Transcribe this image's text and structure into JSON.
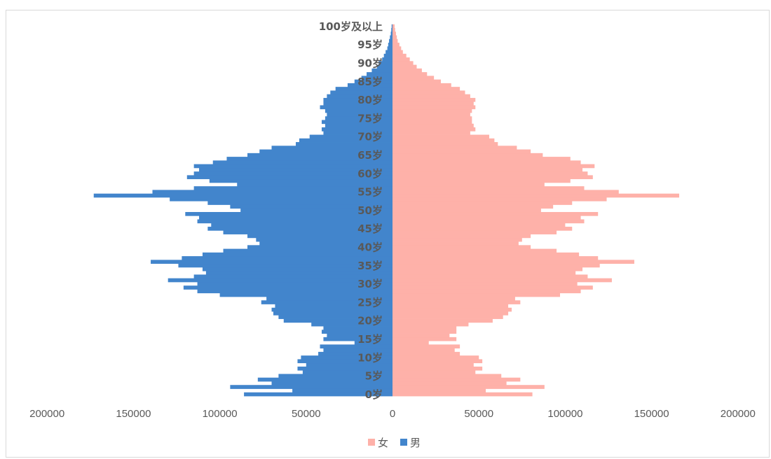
{
  "chart_data": {
    "type": "bar",
    "orientation": "horizontal-population-pyramid",
    "title": "",
    "xlabel": "",
    "ylabel": "",
    "xlim": [
      -200000,
      200000
    ],
    "x_tick_labels": [
      "200000",
      "150000",
      "100000",
      "50000",
      "0",
      "50000",
      "100000",
      "150000",
      "200000"
    ],
    "x_tick_values": [
      -200000,
      -150000,
      -100000,
      -50000,
      0,
      50000,
      100000,
      150000,
      200000
    ],
    "grid": false,
    "legend_position": "bottom",
    "categories": [
      "0岁",
      "1岁",
      "2岁",
      "3岁",
      "4岁",
      "5岁",
      "6岁",
      "7岁",
      "8岁",
      "9岁",
      "10岁",
      "11岁",
      "12岁",
      "13岁",
      "14岁",
      "15岁",
      "16岁",
      "17岁",
      "18岁",
      "19岁",
      "20岁",
      "21岁",
      "22岁",
      "23岁",
      "24岁",
      "25岁",
      "26岁",
      "27岁",
      "28岁",
      "29岁",
      "30岁",
      "31岁",
      "32岁",
      "33岁",
      "34岁",
      "35岁",
      "36岁",
      "37岁",
      "38岁",
      "39岁",
      "40岁",
      "41岁",
      "42岁",
      "43岁",
      "44岁",
      "45岁",
      "46岁",
      "47岁",
      "48岁",
      "49岁",
      "50岁",
      "51岁",
      "52岁",
      "53岁",
      "54岁",
      "55岁",
      "56岁",
      "57岁",
      "58岁",
      "59岁",
      "60岁",
      "61岁",
      "62岁",
      "63岁",
      "64岁",
      "65岁",
      "66岁",
      "67岁",
      "68岁",
      "69岁",
      "70岁",
      "71岁",
      "72岁",
      "73岁",
      "74岁",
      "75岁",
      "76岁",
      "77岁",
      "78岁",
      "79岁",
      "80岁",
      "81岁",
      "82岁",
      "83岁",
      "84岁",
      "85岁",
      "86岁",
      "87岁",
      "88岁",
      "89岁",
      "90岁",
      "91岁",
      "92岁",
      "93岁",
      "94岁",
      "95岁",
      "96岁",
      "97岁",
      "98岁",
      "99岁",
      "100岁及以上"
    ],
    "y_tick_labels": [
      "0岁",
      "5岁",
      "10岁",
      "15岁",
      "20岁",
      "25岁",
      "30岁",
      "35岁",
      "40岁",
      "45岁",
      "50岁",
      "55岁",
      "60岁",
      "65岁",
      "70岁",
      "75岁",
      "80岁",
      "85岁",
      "90岁",
      "95岁",
      "100岁及以上"
    ],
    "series": [
      {
        "name": "男",
        "color": "#4285cc",
        "side": "left",
        "values": [
          86000,
          58000,
          94000,
          70000,
          78000,
          66000,
          52000,
          55000,
          50000,
          55000,
          53000,
          43000,
          40000,
          42000,
          22000,
          40000,
          38000,
          41000,
          40000,
          47000,
          63000,
          66000,
          69000,
          70000,
          68000,
          76000,
          73000,
          100000,
          113000,
          121000,
          113000,
          130000,
          115000,
          108000,
          110000,
          124000,
          140000,
          122000,
          110000,
          98000,
          84000,
          77000,
          79000,
          84000,
          98000,
          107000,
          105000,
          113000,
          112000,
          120000,
          88000,
          94000,
          107000,
          129000,
          173000,
          139000,
          115000,
          90000,
          106000,
          119000,
          115000,
          112000,
          115000,
          104000,
          96000,
          84000,
          77000,
          70000,
          56000,
          54000,
          48000,
          40000,
          41000,
          39000,
          41000,
          39000,
          38000,
          39000,
          42000,
          40000,
          40000,
          38000,
          36000,
          33000,
          26000,
          22000,
          18000,
          15000,
          12000,
          9000,
          8000,
          6000,
          5000,
          4000,
          3000,
          2500,
          2000,
          1500,
          1000,
          700,
          500
        ]
      },
      {
        "name": "女",
        "color": "#feb1a9",
        "side": "right",
        "values": [
          81000,
          54000,
          88000,
          66000,
          74000,
          63000,
          48000,
          52000,
          47000,
          52000,
          50000,
          39000,
          36000,
          39000,
          21000,
          37000,
          33000,
          37000,
          37000,
          44000,
          58000,
          64000,
          67000,
          69000,
          67000,
          74000,
          71000,
          97000,
          109000,
          116000,
          107000,
          127000,
          113000,
          106000,
          110000,
          120000,
          140000,
          119000,
          108000,
          95000,
          80000,
          73000,
          75000,
          80000,
          95000,
          104000,
          100000,
          111000,
          109000,
          119000,
          86000,
          93000,
          104000,
          124000,
          166000,
          131000,
          111000,
          88000,
          103000,
          116000,
          113000,
          110000,
          117000,
          109000,
          103000,
          87000,
          80000,
          72000,
          61000,
          59000,
          56000,
          45000,
          48000,
          47000,
          46000,
          46000,
          45000,
          46000,
          48000,
          47000,
          48000,
          45000,
          42000,
          39000,
          34000,
          28000,
          24000,
          20000,
          17000,
          14000,
          12000,
          10000,
          8000,
          6000,
          5000,
          4000,
          3000,
          2500,
          2000,
          1500,
          1200
        ]
      }
    ]
  },
  "legend": {
    "items": [
      {
        "label": "女",
        "color": "#feb1a9"
      },
      {
        "label": "男",
        "color": "#4285cc"
      }
    ]
  }
}
